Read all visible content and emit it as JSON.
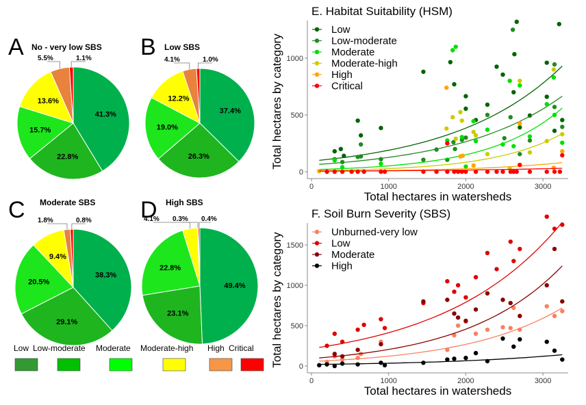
{
  "colors": {
    "Low": "#339933",
    "Low-moderate": "#00c000",
    "Moderate": "#00ff00",
    "Moderate-high": "#ffff00",
    "High": "#f79646",
    "Critical": "#ff0000"
  },
  "pie_legend": {
    "labels": [
      "Low",
      "Low-moderate",
      "Moderate",
      "Moderate-high",
      "High",
      "Critical"
    ],
    "colors": [
      "#339933",
      "#00c000",
      "#00ff00",
      "#ffff00",
      "#f79646",
      "#ff0000"
    ]
  },
  "chart_data": [
    {
      "type": "pie",
      "panel": "A",
      "title": "No - very low SBS",
      "labels": [
        "Low",
        "Low-moderate",
        "Moderate",
        "Moderate-high",
        "High",
        "Critical"
      ],
      "values": [
        41.3,
        22.8,
        15.7,
        13.6,
        5.5,
        1.1
      ],
      "value_labels": [
        "41.3%",
        "22.8%",
        "15.7%",
        "13.6%",
        "5.5%",
        "1.1%"
      ],
      "colors": [
        "#00b04c",
        "#1fb51f",
        "#1de61d",
        "#ffff00",
        "#e8823c",
        "#ff0000"
      ]
    },
    {
      "type": "pie",
      "panel": "B",
      "title": "Low SBS",
      "labels": [
        "Low",
        "Low-moderate",
        "Moderate",
        "Moderate-high",
        "High",
        "Critical"
      ],
      "values": [
        37.4,
        26.3,
        19.0,
        12.2,
        4.1,
        1.0
      ],
      "value_labels": [
        "37.4%",
        "26.3%",
        "19.0%",
        "12.2%",
        "4.1%",
        "1.0%"
      ],
      "colors": [
        "#00b04c",
        "#1fb51f",
        "#1de61d",
        "#ffff00",
        "#e8823c",
        "#ff0000"
      ]
    },
    {
      "type": "pie",
      "panel": "C",
      "title": "Moderate SBS",
      "labels": [
        "Low",
        "Low-moderate",
        "Moderate",
        "Moderate-high",
        "High",
        "Critical"
      ],
      "values": [
        38.3,
        29.1,
        20.5,
        9.4,
        1.8,
        0.8
      ],
      "value_labels": [
        "38.3%",
        "29.1%",
        "20.5%",
        "9.4%",
        "1.8%",
        "0.8%"
      ],
      "colors": [
        "#00b04c",
        "#1fb51f",
        "#1de61d",
        "#ffff00",
        "#e8823c",
        "#ff0000"
      ]
    },
    {
      "type": "pie",
      "panel": "D",
      "title": "High SBS",
      "labels": [
        "Low",
        "Low-moderate",
        "Moderate",
        "Moderate-high",
        "High",
        "Critical"
      ],
      "values": [
        49.4,
        23.1,
        22.8,
        4.1,
        0.3,
        0.4
      ],
      "value_labels": [
        "49.4%",
        "23.1%",
        "22.8%",
        "4.1%",
        "0.3%",
        "0.4%"
      ],
      "colors": [
        "#00b04c",
        "#1fb51f",
        "#1de61d",
        "#ffff00",
        "#e8823c",
        "#ff0000"
      ]
    },
    {
      "type": "scatter",
      "panel": "E",
      "title": "E. Habitat Suitability (HSM)",
      "xlabel": "Total hectares in watersheds",
      "ylabel": "Total hectares by category",
      "xlim": [
        -50,
        3350
      ],
      "ylim": [
        -60,
        1350
      ],
      "xticks": [
        0,
        1000,
        2000,
        3000
      ],
      "yticks": [
        0,
        500,
        1000
      ],
      "legend": "top-left",
      "grid": false,
      "series": [
        {
          "name": "Low",
          "color": "#006400",
          "fit": [
            [
              100,
              100
            ],
            [
              3250,
              930
            ]
          ],
          "points": [
            [
              300,
              180
            ],
            [
              380,
              200
            ],
            [
              420,
              140
            ],
            [
              600,
              450
            ],
            [
              640,
              320
            ],
            [
              900,
              385
            ],
            [
              1450,
              880
            ],
            [
              1800,
              965
            ],
            [
              1850,
              770
            ],
            [
              2000,
              665
            ],
            [
              2000,
              555
            ],
            [
              2130,
              455
            ],
            [
              2280,
              590
            ],
            [
              2400,
              925
            ],
            [
              2480,
              855
            ],
            [
              2620,
              700
            ],
            [
              2630,
              1035
            ],
            [
              2660,
              1320
            ],
            [
              2700,
              390
            ],
            [
              2830,
              495
            ],
            [
              3050,
              960
            ],
            [
              3050,
              660
            ],
            [
              3150,
              360
            ],
            [
              3210,
              1300
            ],
            [
              3250,
              455
            ]
          ]
        },
        {
          "name": "Low-moderate",
          "color": "#228b22",
          "fit": [
            [
              100,
              65
            ],
            [
              3250,
              665
            ]
          ],
          "points": [
            [
              300,
              110
            ],
            [
              400,
              85
            ],
            [
              600,
              130
            ],
            [
              640,
              135
            ],
            [
              640,
              240
            ],
            [
              900,
              110
            ],
            [
              1450,
              105
            ],
            [
              1620,
              195
            ],
            [
              1760,
              105
            ],
            [
              1840,
              260
            ],
            [
              1860,
              200
            ],
            [
              1950,
              280
            ],
            [
              2000,
              300
            ],
            [
              2280,
              500
            ],
            [
              2500,
              295
            ],
            [
              2580,
              480
            ],
            [
              2610,
              1250
            ],
            [
              2700,
              155
            ],
            [
              2830,
              275
            ],
            [
              3150,
              945
            ],
            [
              3150,
              570
            ],
            [
              3250,
              395
            ]
          ]
        },
        {
          "name": "Moderate",
          "color": "#00e000",
          "fit": [
            [
              100,
              20
            ],
            [
              3250,
              560
            ]
          ],
          "points": [
            [
              300,
              100
            ],
            [
              400,
              40
            ],
            [
              900,
              70
            ],
            [
              1760,
              275
            ],
            [
              1830,
              1070
            ],
            [
              1870,
              1100
            ],
            [
              1950,
              305
            ],
            [
              2000,
              45
            ],
            [
              2100,
              445
            ],
            [
              2130,
              270
            ],
            [
              2280,
              370
            ],
            [
              2480,
              240
            ],
            [
              2570,
              800
            ],
            [
              2620,
              225
            ],
            [
              2700,
              760
            ],
            [
              2830,
              310
            ],
            [
              3050,
              595
            ],
            [
              3140,
              830
            ],
            [
              3150,
              500
            ],
            [
              3250,
              255
            ]
          ]
        },
        {
          "name": "Moderate-high",
          "color": "#cccc00",
          "fit": [
            [
              100,
              10
            ],
            [
              3250,
              335
            ]
          ],
          "points": [
            [
              1750,
              380
            ],
            [
              1830,
              480
            ],
            [
              1870,
              290
            ],
            [
              1930,
              525
            ],
            [
              1950,
              450
            ],
            [
              2100,
              350
            ],
            [
              2130,
              320
            ],
            [
              2280,
              155
            ],
            [
              2570,
              30
            ],
            [
              2700,
              800
            ],
            [
              2830,
              170
            ],
            [
              3050,
              270
            ],
            [
              3140,
              900
            ],
            [
              3250,
              330
            ]
          ]
        },
        {
          "name": "High",
          "color": "#ffa500",
          "fit": [
            [
              100,
              5
            ],
            [
              3250,
              80
            ]
          ],
          "points": [
            [
              100,
              5
            ],
            [
              1750,
              740
            ],
            [
              1930,
              135
            ],
            [
              1960,
              140
            ],
            [
              2100,
              55
            ],
            [
              2700,
              425
            ],
            [
              3140,
              35
            ],
            [
              3250,
              180
            ]
          ]
        },
        {
          "name": "Critical",
          "color": "#ff0000",
          "fit": [
            [
              100,
              5
            ],
            [
              3250,
              30
            ]
          ],
          "points": [
            [
              200,
              0
            ],
            [
              300,
              0
            ],
            [
              400,
              0
            ],
            [
              520,
              0
            ],
            [
              600,
              0
            ],
            [
              680,
              0
            ],
            [
              900,
              0
            ],
            [
              950,
              0
            ],
            [
              1450,
              0
            ],
            [
              1620,
              0
            ],
            [
              1760,
              0
            ],
            [
              1760,
              250
            ],
            [
              1850,
              0
            ],
            [
              1900,
              0
            ],
            [
              1950,
              0
            ],
            [
              2000,
              0
            ],
            [
              2130,
              0
            ],
            [
              2280,
              0
            ],
            [
              2400,
              0
            ],
            [
              2480,
              0
            ],
            [
              2580,
              0
            ],
            [
              2620,
              0
            ],
            [
              2660,
              0
            ],
            [
              2700,
              60
            ],
            [
              2830,
              0
            ],
            [
              3050,
              0
            ],
            [
              3150,
              0
            ],
            [
              3220,
              0
            ],
            [
              3250,
              145
            ]
          ]
        }
      ]
    },
    {
      "type": "scatter",
      "panel": "F",
      "title": "F. Soil Burn Severity (SBS)",
      "xlabel": "Total hectares in watersheds",
      "ylabel": "Total hectares by category",
      "xlim": [
        -50,
        3350
      ],
      "ylim": [
        -80,
        1950
      ],
      "xticks": [
        0,
        1000,
        2000,
        3000
      ],
      "yticks": [
        0,
        500,
        1000,
        1500
      ],
      "legend": "top-left",
      "grid": false,
      "series": [
        {
          "name": "Unburned-very low",
          "color": "#fa8060",
          "fit": [
            [
              100,
              60
            ],
            [
              3250,
              720
            ]
          ],
          "points": [
            [
              200,
              50
            ],
            [
              300,
              120
            ],
            [
              400,
              80
            ],
            [
              600,
              100
            ],
            [
              640,
              150
            ],
            [
              900,
              300
            ],
            [
              1760,
              200
            ],
            [
              1850,
              380
            ],
            [
              1900,
              500
            ],
            [
              2000,
              550
            ],
            [
              2130,
              400
            ],
            [
              2280,
              450
            ],
            [
              2480,
              480
            ],
            [
              2580,
              470
            ],
            [
              2620,
              720
            ],
            [
              2700,
              450
            ],
            [
              3050,
              740
            ],
            [
              3150,
              620
            ],
            [
              3250,
              680
            ]
          ]
        },
        {
          "name": "Low",
          "color": "#e00000",
          "fit": [
            [
              100,
              230
            ],
            [
              3250,
              1780
            ]
          ],
          "points": [
            [
              200,
              250
            ],
            [
              300,
              400
            ],
            [
              400,
              300
            ],
            [
              600,
              450
            ],
            [
              680,
              510
            ],
            [
              900,
              580
            ],
            [
              950,
              470
            ],
            [
              1450,
              780
            ],
            [
              1760,
              1050
            ],
            [
              1850,
              920
            ],
            [
              1900,
              1000
            ],
            [
              2000,
              850
            ],
            [
              2130,
              1100
            ],
            [
              2280,
              1400
            ],
            [
              2400,
              1200
            ],
            [
              2580,
              1540
            ],
            [
              2620,
              1300
            ],
            [
              2700,
              1450
            ],
            [
              3050,
              1850
            ],
            [
              3150,
              1700
            ],
            [
              3250,
              1750
            ]
          ]
        },
        {
          "name": "Moderate",
          "color": "#8b0000",
          "fit": [
            [
              100,
              100
            ],
            [
              3250,
              1240
            ]
          ],
          "points": [
            [
              300,
              150
            ],
            [
              400,
              120
            ],
            [
              600,
              200
            ],
            [
              900,
              270
            ],
            [
              1450,
              800
            ],
            [
              1760,
              820
            ],
            [
              1850,
              650
            ],
            [
              1900,
              600
            ],
            [
              2000,
              560
            ],
            [
              2130,
              700
            ],
            [
              2280,
              900
            ],
            [
              2480,
              820
            ],
            [
              2580,
              780
            ],
            [
              2700,
              620
            ],
            [
              3050,
              1000
            ],
            [
              3150,
              1450
            ],
            [
              3250,
              800
            ]
          ]
        },
        {
          "name": "High",
          "color": "#000000",
          "fit": [
            [
              100,
              20
            ],
            [
              3250,
              140
            ]
          ],
          "points": [
            [
              100,
              10
            ],
            [
              200,
              20
            ],
            [
              300,
              0
            ],
            [
              400,
              30
            ],
            [
              600,
              20
            ],
            [
              900,
              40
            ],
            [
              950,
              10
            ],
            [
              1450,
              40
            ],
            [
              1760,
              80
            ],
            [
              1850,
              90
            ],
            [
              2000,
              100
            ],
            [
              2130,
              160
            ],
            [
              2280,
              60
            ],
            [
              2480,
              340
            ],
            [
              2620,
              240
            ],
            [
              2700,
              330
            ],
            [
              3050,
              300
            ],
            [
              3150,
              190
            ],
            [
              3250,
              80
            ]
          ]
        }
      ]
    }
  ]
}
